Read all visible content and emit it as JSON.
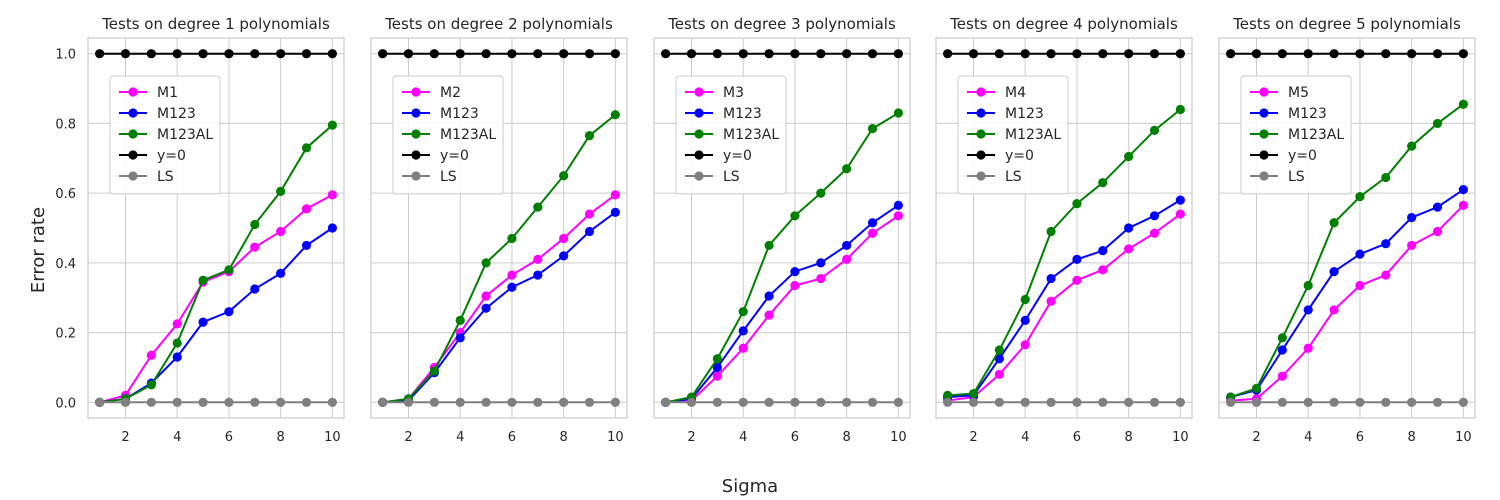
{
  "figure": {
    "xlabel": "Sigma",
    "ylabel": "Error rate",
    "ylim": [
      -0.045,
      1.045
    ],
    "xlim": [
      0.55,
      10.45
    ],
    "yticks": [
      0.0,
      0.2,
      0.4,
      0.6,
      0.8,
      1.0
    ],
    "ytick_labels": [
      "0.0",
      "0.2",
      "0.4",
      "0.6",
      "0.8",
      "1.0"
    ],
    "xticks": [
      2,
      4,
      6,
      8,
      10
    ],
    "xtick_labels": [
      "2",
      "4",
      "6",
      "8",
      "10"
    ],
    "grid": true,
    "legend_placement": "upper-left"
  },
  "colors": {
    "M_single": "#ff00ff",
    "M123": "#0000ff",
    "M123AL": "#008000",
    "y0": "#000000",
    "LS": "#808080",
    "grid": "#cccccc",
    "axes_edge": "#cccccc"
  },
  "chart_data": [
    {
      "type": "line",
      "title": "Tests on degree 1 polynomials",
      "x": [
        1,
        2,
        3,
        4,
        5,
        6,
        7,
        8,
        9,
        10
      ],
      "series": [
        {
          "name": "M1",
          "color_key": "M_single",
          "values": [
            0.0,
            0.02,
            0.135,
            0.225,
            0.345,
            0.375,
            0.445,
            0.49,
            0.555,
            0.595
          ]
        },
        {
          "name": "M123",
          "color_key": "M123",
          "values": [
            0.0,
            0.01,
            0.055,
            0.13,
            0.23,
            0.26,
            0.325,
            0.37,
            0.45,
            0.5
          ]
        },
        {
          "name": "M123AL",
          "color_key": "M123AL",
          "values": [
            0.0,
            0.01,
            0.05,
            0.17,
            0.35,
            0.38,
            0.51,
            0.605,
            0.73,
            0.795
          ]
        },
        {
          "name": "y=0",
          "color_key": "y0",
          "values": [
            1,
            1,
            1,
            1,
            1,
            1,
            1,
            1,
            1,
            1
          ]
        },
        {
          "name": "LS",
          "color_key": "LS",
          "values": [
            0,
            0,
            0,
            0,
            0,
            0,
            0,
            0,
            0,
            0
          ]
        }
      ]
    },
    {
      "type": "line",
      "title": "Tests on degree 2 polynomials",
      "x": [
        1,
        2,
        3,
        4,
        5,
        6,
        7,
        8,
        9,
        10
      ],
      "series": [
        {
          "name": "M2",
          "color_key": "M_single",
          "values": [
            0.0,
            0.01,
            0.1,
            0.2,
            0.305,
            0.365,
            0.41,
            0.47,
            0.54,
            0.595
          ]
        },
        {
          "name": "M123",
          "color_key": "M123",
          "values": [
            0.0,
            0.005,
            0.085,
            0.185,
            0.27,
            0.33,
            0.365,
            0.42,
            0.49,
            0.545
          ]
        },
        {
          "name": "M123AL",
          "color_key": "M123AL",
          "values": [
            0.0,
            0.01,
            0.09,
            0.235,
            0.4,
            0.47,
            0.56,
            0.65,
            0.765,
            0.825
          ]
        },
        {
          "name": "y=0",
          "color_key": "y0",
          "values": [
            1,
            1,
            1,
            1,
            1,
            1,
            1,
            1,
            1,
            1
          ]
        },
        {
          "name": "LS",
          "color_key": "LS",
          "values": [
            0,
            0,
            0,
            0,
            0,
            0,
            0,
            0,
            0,
            0
          ]
        }
      ]
    },
    {
      "type": "line",
      "title": "Tests on degree 3 polynomials",
      "x": [
        1,
        2,
        3,
        4,
        5,
        6,
        7,
        8,
        9,
        10
      ],
      "series": [
        {
          "name": "M3",
          "color_key": "M_single",
          "values": [
            0.0,
            0.005,
            0.075,
            0.155,
            0.25,
            0.335,
            0.355,
            0.41,
            0.485,
            0.535
          ]
        },
        {
          "name": "M123",
          "color_key": "M123",
          "values": [
            0.0,
            0.01,
            0.1,
            0.205,
            0.305,
            0.375,
            0.4,
            0.45,
            0.515,
            0.565
          ]
        },
        {
          "name": "M123AL",
          "color_key": "M123AL",
          "values": [
            0.0,
            0.015,
            0.125,
            0.26,
            0.45,
            0.535,
            0.6,
            0.67,
            0.785,
            0.83
          ]
        },
        {
          "name": "y=0",
          "color_key": "y0",
          "values": [
            1,
            1,
            1,
            1,
            1,
            1,
            1,
            1,
            1,
            1
          ]
        },
        {
          "name": "LS",
          "color_key": "LS",
          "values": [
            0,
            0,
            0,
            0,
            0,
            0,
            0,
            0,
            0,
            0
          ]
        }
      ]
    },
    {
      "type": "line",
      "title": "Tests on degree 4 polynomials",
      "x": [
        1,
        2,
        3,
        4,
        5,
        6,
        7,
        8,
        9,
        10
      ],
      "series": [
        {
          "name": "M4",
          "color_key": "M_single",
          "values": [
            0.005,
            0.015,
            0.08,
            0.165,
            0.29,
            0.35,
            0.38,
            0.44,
            0.485,
            0.54
          ]
        },
        {
          "name": "M123",
          "color_key": "M123",
          "values": [
            0.015,
            0.02,
            0.125,
            0.235,
            0.355,
            0.41,
            0.435,
            0.5,
            0.535,
            0.58
          ]
        },
        {
          "name": "M123AL",
          "color_key": "M123AL",
          "values": [
            0.02,
            0.025,
            0.15,
            0.295,
            0.49,
            0.57,
            0.63,
            0.705,
            0.78,
            0.84
          ]
        },
        {
          "name": "y=0",
          "color_key": "y0",
          "values": [
            1,
            1,
            1,
            1,
            1,
            1,
            1,
            1,
            1,
            1
          ]
        },
        {
          "name": "LS",
          "color_key": "LS",
          "values": [
            0,
            0,
            0,
            0,
            0,
            0,
            0,
            0,
            0,
            0
          ]
        }
      ]
    },
    {
      "type": "line",
      "title": "Tests on degree 5 polynomials",
      "x": [
        1,
        2,
        3,
        4,
        5,
        6,
        7,
        8,
        9,
        10
      ],
      "series": [
        {
          "name": "M5",
          "color_key": "M_single",
          "values": [
            0.005,
            0.01,
            0.075,
            0.155,
            0.265,
            0.335,
            0.365,
            0.45,
            0.49,
            0.565
          ]
        },
        {
          "name": "M123",
          "color_key": "M123",
          "values": [
            0.015,
            0.035,
            0.15,
            0.265,
            0.375,
            0.425,
            0.455,
            0.53,
            0.56,
            0.61
          ]
        },
        {
          "name": "M123AL",
          "color_key": "M123AL",
          "values": [
            0.015,
            0.04,
            0.185,
            0.335,
            0.515,
            0.59,
            0.645,
            0.735,
            0.8,
            0.855
          ]
        },
        {
          "name": "y=0",
          "color_key": "y0",
          "values": [
            1,
            1,
            1,
            1,
            1,
            1,
            1,
            1,
            1,
            1
          ]
        },
        {
          "name": "LS",
          "color_key": "LS",
          "values": [
            0,
            0,
            0,
            0,
            0,
            0,
            0,
            0,
            0,
            0
          ]
        }
      ]
    }
  ]
}
